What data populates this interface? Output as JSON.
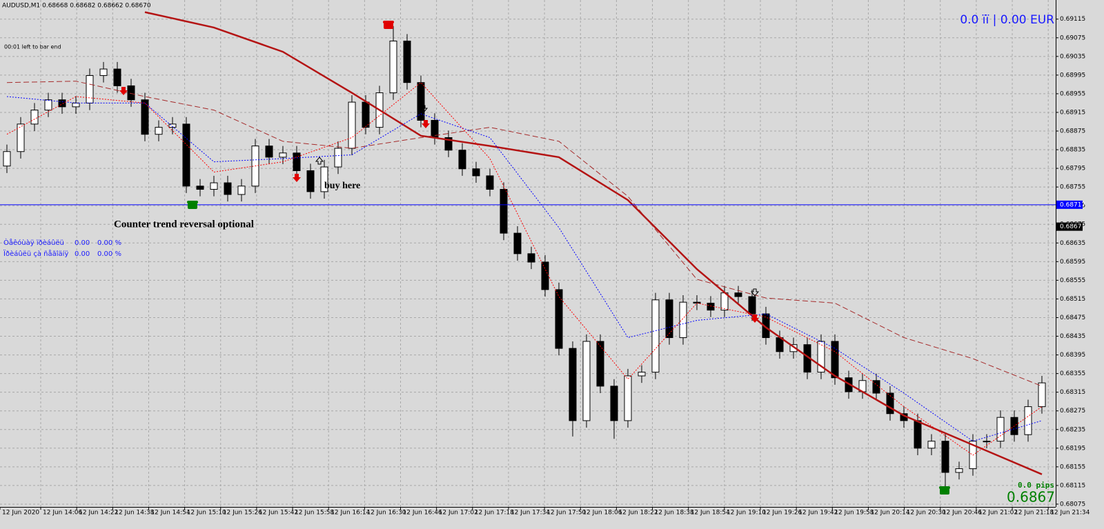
{
  "chart_data": {
    "type": "candlestick",
    "title": "AUDUSD,M1  0.68668 0.68682 0.68662 0.68670",
    "countdown": "00:01 left to bar end",
    "account": "0.0 ïï | 0.00 EUR",
    "annotations": [
      "Counter trend reversal optional",
      "buy here"
    ],
    "info_rows": [
      [
        "Òåêóùàÿ ïðèáûëü",
        "0.00",
        "0.00 %"
      ],
      [
        "Ïðèáûëü çà ñåãîäíÿ",
        "0.00",
        "0.00 %"
      ]
    ],
    "pips": "0.0 pips",
    "bid": 0.6867,
    "hline": 0.68717,
    "hline_color": "#0000ff",
    "time_labels": [
      "12 Jun 2020",
      "12 Jun 14:06",
      "12 Jun 14:22",
      "12 Jun 14:38",
      "12 Jun 14:54",
      "12 Jun 15:10",
      "12 Jun 15:26",
      "12 Jun 15:42",
      "12 Jun 15:58",
      "12 Jun 16:14",
      "12 Jun 16:30",
      "12 Jun 16:46",
      "12 Jun 17:02",
      "12 Jun 17:18",
      "12 Jun 17:34",
      "12 Jun 17:50",
      "12 Jun 18:06",
      "12 Jun 18:22",
      "12 Jun 18:38",
      "12 Jun 18:54",
      "12 Jun 19:10",
      "12 Jun 19:26",
      "12 Jun 19:42",
      "12 Jun 19:58",
      "12 Jun 20:14",
      "12 Jun 20:30",
      "12 Jun 20:46",
      "12 Jun 21:02",
      "12 Jun 21:18",
      "12 Jun 21:34"
    ],
    "open": [
      0.688,
      0.68831,
      0.6889,
      0.6892,
      0.68942,
      0.68927,
      0.68935,
      0.68994,
      0.69008,
      0.68972,
      0.68942,
      0.68868,
      0.68883,
      0.6889,
      0.68757,
      0.6875,
      0.68764,
      0.68739,
      0.68757,
      0.68843,
      0.68819,
      0.68828,
      0.6879,
      0.68745,
      0.68798,
      0.68838,
      0.68937,
      0.68883,
      0.68957,
      0.69068,
      0.68979,
      0.68898,
      0.68861,
      0.68834,
      0.68794,
      0.68779,
      0.6875,
      0.68656,
      0.68612,
      0.68594,
      0.68535,
      0.68409,
      0.68254,
      0.68424,
      0.68328,
      0.68254,
      0.6835,
      0.68358,
      0.68513,
      0.68432,
      0.68508,
      0.68506,
      0.68491,
      0.68528,
      0.6852,
      0.68483,
      0.68432,
      0.68402,
      0.68417,
      0.68358,
      0.68424,
      0.68346,
      0.68316,
      0.6834,
      0.68313,
      0.68269,
      0.68254,
      0.68195,
      0.6821,
      0.68143,
      0.68151,
      0.6821,
      0.6821,
      0.68261,
      0.68224,
      0.68284
    ],
    "high": [
      0.68846,
      0.68905,
      0.68935,
      0.68957,
      0.68957,
      0.6895,
      0.69009,
      0.69023,
      0.69023,
      0.68987,
      0.68957,
      0.68898,
      0.68905,
      0.68905,
      0.68772,
      0.68779,
      0.68779,
      0.68772,
      0.68858,
      0.68858,
      0.68843,
      0.68843,
      0.68805,
      0.68813,
      0.68853,
      0.68952,
      0.68952,
      0.68972,
      0.691,
      0.69083,
      0.68994,
      0.68913,
      0.68876,
      0.68849,
      0.68809,
      0.68794,
      0.68765,
      0.68671,
      0.68627,
      0.68609,
      0.6855,
      0.68424,
      0.68439,
      0.68439,
      0.68343,
      0.68365,
      0.68373,
      0.68528,
      0.68528,
      0.68523,
      0.68523,
      0.68521,
      0.68543,
      0.68543,
      0.68535,
      0.68498,
      0.68447,
      0.68432,
      0.68432,
      0.68439,
      0.68439,
      0.68361,
      0.68355,
      0.68355,
      0.68328,
      0.68284,
      0.68269,
      0.68225,
      0.68225,
      0.68166,
      0.68225,
      0.68225,
      0.68276,
      0.68276,
      0.68299,
      0.6835
    ],
    "low": [
      0.68785,
      0.68816,
      0.68875,
      0.68905,
      0.68912,
      0.68912,
      0.6892,
      0.68979,
      0.68957,
      0.68927,
      0.68853,
      0.68853,
      0.68868,
      0.68742,
      0.68735,
      0.68735,
      0.68724,
      0.68724,
      0.68742,
      0.68804,
      0.68804,
      0.68775,
      0.6873,
      0.6873,
      0.68783,
      0.68823,
      0.68868,
      0.68868,
      0.68942,
      0.68964,
      0.68883,
      0.68846,
      0.68819,
      0.68779,
      0.68764,
      0.68735,
      0.68641,
      0.68597,
      0.68579,
      0.6852,
      0.68394,
      0.6822,
      0.68239,
      0.68313,
      0.68215,
      0.68239,
      0.68335,
      0.68343,
      0.68417,
      0.68417,
      0.68491,
      0.68476,
      0.68476,
      0.68505,
      0.68468,
      0.68417,
      0.68387,
      0.68387,
      0.68343,
      0.68343,
      0.68331,
      0.68301,
      0.68301,
      0.68298,
      0.68254,
      0.68239,
      0.6818,
      0.6818,
      0.6811,
      0.68128,
      0.68136,
      0.68195,
      0.68195,
      0.68209,
      0.68209,
      0.68269
    ],
    "close": [
      0.68831,
      0.6889,
      0.6892,
      0.68942,
      0.68927,
      0.68935,
      0.68994,
      0.69008,
      0.68972,
      0.68942,
      0.68868,
      0.68883,
      0.6889,
      0.68757,
      0.6875,
      0.68764,
      0.68739,
      0.68757,
      0.68843,
      0.68819,
      0.68828,
      0.6879,
      0.68745,
      0.68798,
      0.68838,
      0.68937,
      0.68883,
      0.68957,
      0.69068,
      0.68979,
      0.68898,
      0.68861,
      0.68834,
      0.68794,
      0.68779,
      0.6875,
      0.68656,
      0.68612,
      0.68594,
      0.68535,
      0.68409,
      0.68254,
      0.68424,
      0.68328,
      0.68254,
      0.6835,
      0.68358,
      0.68513,
      0.68432,
      0.68508,
      0.68506,
      0.68491,
      0.68528,
      0.6852,
      0.68483,
      0.68432,
      0.68402,
      0.68417,
      0.68358,
      0.68424,
      0.68346,
      0.68316,
      0.6834,
      0.68313,
      0.68269,
      0.68254,
      0.68195,
      0.6821,
      0.68143,
      0.68151,
      0.6821,
      0.6821,
      0.68261,
      0.68224,
      0.68284,
      0.68335
    ],
    "lines": [
      {
        "color": "#b41414",
        "style": "solid",
        "values": [
          null,
          null,
          0.6913,
          0.69097,
          0.69045,
          0.68957,
          0.68865,
          0.68843,
          0.68819,
          0.68727,
          0.68579,
          0.68454,
          0.6835,
          0.68265,
          0.68202,
          0.68139
        ]
      },
      {
        "color": "#a52a2a",
        "style": "dashed",
        "values": [
          0.68979,
          0.68982,
          0.68949,
          0.6892,
          0.68853,
          0.68838,
          0.68861,
          0.68883,
          0.68853,
          0.68735,
          0.68557,
          0.68517,
          0.68506,
          0.68432,
          0.68387,
          0.68328
        ]
      },
      {
        "color": "#0000ff",
        "style": "dotted",
        "values": [
          0.68949,
          0.68935,
          0.68935,
          0.68809,
          0.68816,
          0.68824,
          0.68912,
          0.68861,
          0.68668,
          0.68432,
          0.68469,
          0.68483,
          0.68409,
          0.68313,
          0.6821,
          0.68254
        ]
      },
      {
        "color": "#ff0000",
        "style": "dotted",
        "values": [
          0.68868,
          0.68949,
          0.68935,
          0.68787,
          0.68809,
          0.68861,
          0.68979,
          0.68816,
          0.6852,
          0.68343,
          0.68506,
          0.68476,
          0.68402,
          0.68284,
          0.6818,
          0.68284
        ]
      }
    ],
    "ylim": [
      0.68069,
      0.69156
    ],
    "yticks": [
      0.68075,
      0.68115,
      0.68155,
      0.68195,
      0.68235,
      0.68275,
      0.68315,
      0.68355,
      0.68395,
      0.68435,
      0.68475,
      0.68515,
      0.68555,
      0.68595,
      0.68635,
      0.68675,
      0.68715,
      0.68755,
      0.68795,
      0.68835,
      0.68875,
      0.68915,
      0.68955,
      0.68995,
      0.69035,
      0.69075,
      0.69115
    ],
    "grid": true
  }
}
